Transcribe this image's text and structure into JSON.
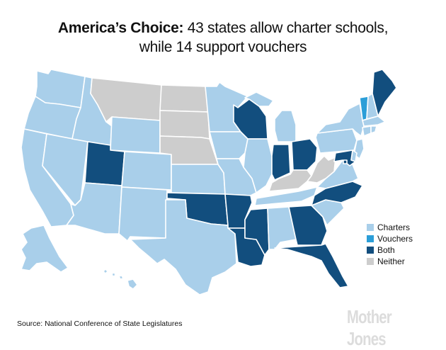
{
  "title": {
    "lead": "America’s Choice:",
    "rest": " 43 states allow charter schools,",
    "line2": "while 14 support vouchers"
  },
  "colors": {
    "charters": "#a9cfea",
    "vouchers": "#2b9ed8",
    "both": "#124e7e",
    "neither": "#cdcdcd",
    "border": "#ffffff"
  },
  "legend": [
    {
      "key": "charters",
      "label": "Charters"
    },
    {
      "key": "vouchers",
      "label": "Vouchers"
    },
    {
      "key": "both",
      "label": "Both"
    },
    {
      "key": "neither",
      "label": "Neither"
    }
  ],
  "states": {
    "WA": "charters",
    "OR": "charters",
    "CA": "charters",
    "NV": "charters",
    "ID": "charters",
    "MT": "neither",
    "WY": "charters",
    "UT": "both",
    "AZ": "charters",
    "CO": "charters",
    "NM": "charters",
    "ND": "neither",
    "SD": "neither",
    "NE": "neither",
    "KS": "charters",
    "OK": "both",
    "TX": "charters",
    "MN": "charters",
    "IA": "charters",
    "MO": "charters",
    "AR": "both",
    "LA": "both",
    "WI": "both",
    "IL": "charters",
    "MI": "charters",
    "IN": "both",
    "OH": "both",
    "KY": "neither",
    "TN": "charters",
    "MS": "both",
    "AL": "charters",
    "GA": "both",
    "FL": "both",
    "SC": "charters",
    "NC": "both",
    "VA": "charters",
    "WV": "neither",
    "PA": "charters",
    "NY": "charters",
    "VT": "vouchers",
    "NH": "charters",
    "ME": "both",
    "MA": "charters",
    "CT": "charters",
    "RI": "charters",
    "NJ": "charters",
    "DE": "charters",
    "MD": "both",
    "DC": "both",
    "AK": "charters",
    "HI": "charters"
  },
  "source": "Source: National Conference of State Legislatures",
  "brand": "Mother Jones"
}
